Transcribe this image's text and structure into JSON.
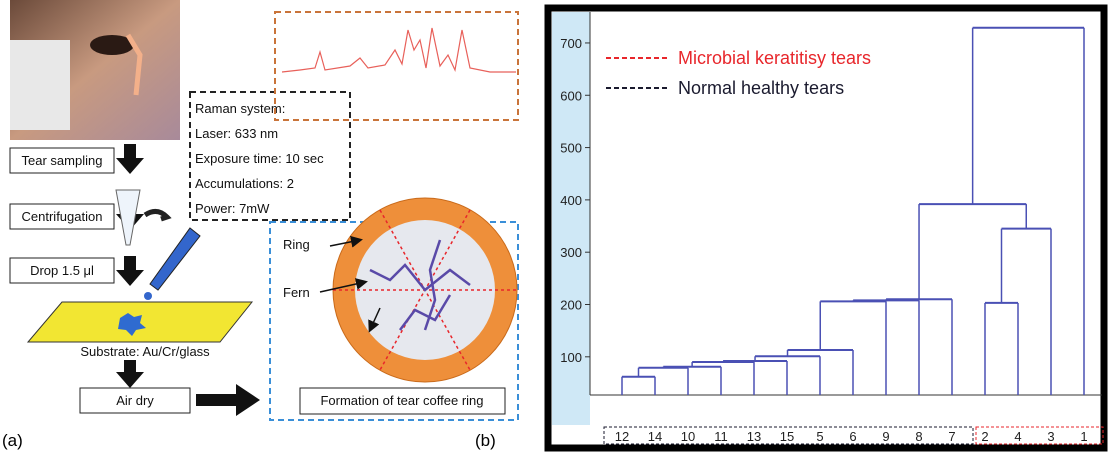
{
  "panel_labels": [
    "(a)",
    "(b)"
  ],
  "panel_a": {
    "steps": [
      "Tear sampling",
      "Centrifugation",
      "Drop 1.5 μl",
      "Substrate: Au/Cr/glass",
      "Air dry"
    ],
    "raman": [
      "Raman system:",
      "Laser: 633 nm",
      "Exposure time: 10 sec",
      "Accumulations: 2",
      "Power: 7mW"
    ],
    "annotations": [
      "Ring",
      "Fern"
    ],
    "result": "Formation of tear coffee ring"
  },
  "chart_data": {
    "type": "dendrogram",
    "ylim": [
      27,
      763
    ],
    "yticks": [
      100,
      200,
      300,
      400,
      500,
      600,
      700
    ],
    "color": "#4a50b4",
    "legend": [
      {
        "name": "Microbial keratitisy tears",
        "color": "#e8262b"
      },
      {
        "name": "Normal healthy tears",
        "color": "#1a1a2e"
      }
    ],
    "tree": {
      "height": 729,
      "children": [
        {
          "height": 392,
          "children": [
            {
              "height": 210,
              "children": [
                {
                  "height": 208,
                  "children": [
                    {
                      "height": 206,
                      "children": [
                        {
                          "height": 113,
                          "children": [
                            {
                              "height": 101,
                              "children": [
                                {
                                  "height": 92,
                                  "children": [
                                    {
                                      "height": 90,
                                      "children": [
                                        {
                                          "height": 81,
                                          "children": [
                                            {
                                              "height": 79,
                                              "children": [
                                                {
                                                  "height": 62,
                                                  "children": [
                                                    "12",
                                                    "14"
                                                  ]
                                                },
                                                "10"
                                              ]
                                            },
                                            "11"
                                          ]
                                        },
                                        "13"
                                      ]
                                    },
                                    "15"
                                  ]
                                },
                                "5"
                              ]
                            },
                            "6"
                          ]
                        },
                        "9"
                      ]
                    },
                    "8"
                  ]
                },
                "7"
              ]
            },
            {
              "height": 345,
              "children": [
                {
                  "height": 203,
                  "children": [
                    "2",
                    "4"
                  ]
                },
                "3"
              ]
            }
          ]
        },
        "1"
      ]
    }
  }
}
